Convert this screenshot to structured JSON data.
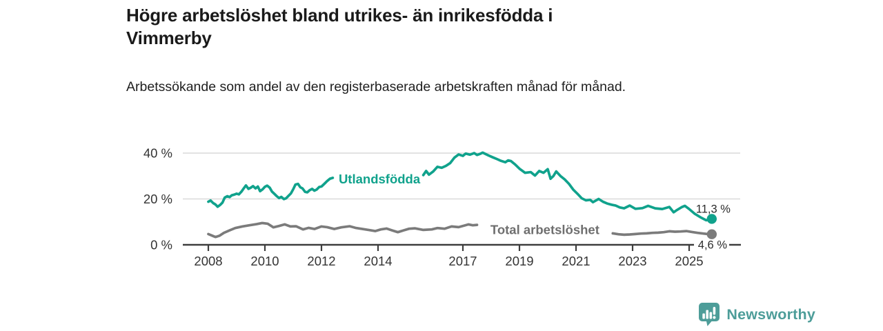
{
  "header": {
    "title": "Högre arbetslöshet bland utrikes- än inrikesfödda i Vimmerby",
    "subtitle": "Arbetssökande som andel av den registerbaserade arbetskraften månad för månad."
  },
  "footer": {
    "brand": "Newsworthy"
  },
  "colors": {
    "teal": "#10a28c",
    "gray_line": "#7b7b7b",
    "gray_label": "#6f6f6f",
    "grid": "#d9d9d9",
    "axis": "#3d3d3d",
    "logo_teal": "#4d9d99"
  },
  "chart_data": {
    "type": "line",
    "title": "Högre arbetslöshet bland utrikes- än inrikesfödda i Vimmerby",
    "subtitle": "Arbetssökande som andel av den registerbaserade arbetskraften månad för månad.",
    "unit": "%",
    "x_axis": {
      "range": [
        2007.1,
        2026.3
      ],
      "ticks": [
        {
          "year": 2008,
          "label": "2008"
        },
        {
          "year": 2010,
          "label": "2010"
        },
        {
          "year": 2012,
          "label": "2012"
        },
        {
          "year": 2014,
          "label": "2014"
        },
        {
          "year": 2017,
          "label": "2017"
        },
        {
          "year": 2019,
          "label": "2019"
        },
        {
          "year": 2021,
          "label": "2021"
        },
        {
          "year": 2023,
          "label": "2023"
        },
        {
          "year": 2025,
          "label": "2025"
        }
      ]
    },
    "y_axis": {
      "range": [
        0,
        43
      ],
      "grid": true,
      "ticks": [
        {
          "value": 0,
          "label": "0 %"
        },
        {
          "value": 20,
          "label": "20 %"
        },
        {
          "value": 40,
          "label": "40 %"
        }
      ]
    },
    "series": [
      {
        "name": "Utlandsfödda",
        "color": "#10a28c",
        "inline_label": {
          "text": "Utlandsfödda",
          "year": 2014.05,
          "pct": 26.8
        },
        "end_label": "11,3 %",
        "end_value": 11.3,
        "end_year": 2025.8,
        "segments": [
          [
            [
              2008.0,
              18.8
            ],
            [
              2008.08,
              19.3
            ],
            [
              2008.17,
              18.2
            ],
            [
              2008.25,
              17.6
            ],
            [
              2008.33,
              16.6
            ],
            [
              2008.42,
              17.4
            ],
            [
              2008.5,
              18.4
            ],
            [
              2008.58,
              20.6
            ],
            [
              2008.67,
              21.2
            ],
            [
              2008.75,
              20.8
            ],
            [
              2008.83,
              21.6
            ],
            [
              2008.92,
              21.9
            ],
            [
              2009.0,
              22.3
            ],
            [
              2009.08,
              22.0
            ],
            [
              2009.17,
              23.2
            ],
            [
              2009.25,
              24.6
            ],
            [
              2009.33,
              25.9
            ],
            [
              2009.42,
              24.4
            ],
            [
              2009.5,
              24.9
            ],
            [
              2009.58,
              25.6
            ],
            [
              2009.67,
              24.6
            ],
            [
              2009.75,
              25.4
            ],
            [
              2009.83,
              23.4
            ],
            [
              2009.92,
              24.2
            ],
            [
              2010.0,
              25.3
            ],
            [
              2010.08,
              25.8
            ],
            [
              2010.17,
              24.9
            ],
            [
              2010.25,
              23.2
            ],
            [
              2010.33,
              22.3
            ],
            [
              2010.42,
              21.2
            ],
            [
              2010.5,
              20.4
            ],
            [
              2010.58,
              20.9
            ],
            [
              2010.67,
              19.9
            ],
            [
              2010.75,
              20.3
            ],
            [
              2010.83,
              21.3
            ],
            [
              2010.92,
              22.4
            ],
            [
              2011.0,
              24.2
            ],
            [
              2011.08,
              26.3
            ],
            [
              2011.17,
              26.6
            ],
            [
              2011.25,
              25.1
            ],
            [
              2011.33,
              24.6
            ],
            [
              2011.42,
              23.1
            ],
            [
              2011.5,
              22.9
            ],
            [
              2011.58,
              23.8
            ],
            [
              2011.67,
              24.4
            ],
            [
              2011.75,
              23.6
            ],
            [
              2011.83,
              24.1
            ],
            [
              2011.92,
              25.2
            ],
            [
              2012.0,
              25.4
            ],
            [
              2012.1,
              26.6
            ],
            [
              2012.2,
              27.8
            ],
            [
              2012.3,
              28.8
            ],
            [
              2012.4,
              29.2
            ]
          ],
          [
            [
              2015.6,
              30.4
            ],
            [
              2015.7,
              32.2
            ],
            [
              2015.8,
              30.6
            ],
            [
              2015.95,
              32.0
            ],
            [
              2016.1,
              34.0
            ],
            [
              2016.25,
              33.6
            ],
            [
              2016.4,
              34.4
            ],
            [
              2016.55,
              35.6
            ],
            [
              2016.7,
              38.0
            ],
            [
              2016.85,
              39.4
            ],
            [
              2017.0,
              38.8
            ],
            [
              2017.1,
              39.8
            ],
            [
              2017.25,
              39.3
            ],
            [
              2017.4,
              40.0
            ],
            [
              2017.5,
              39.2
            ],
            [
              2017.6,
              39.6
            ],
            [
              2017.7,
              40.2
            ],
            [
              2017.8,
              39.6
            ],
            [
              2017.9,
              39.0
            ],
            [
              2018.05,
              38.2
            ],
            [
              2018.2,
              37.4
            ],
            [
              2018.35,
              36.6
            ],
            [
              2018.5,
              36.0
            ],
            [
              2018.6,
              36.8
            ],
            [
              2018.7,
              36.5
            ],
            [
              2018.85,
              35.0
            ],
            [
              2019.0,
              33.2
            ],
            [
              2019.2,
              31.4
            ],
            [
              2019.4,
              31.7
            ],
            [
              2019.55,
              30.2
            ],
            [
              2019.7,
              32.2
            ],
            [
              2019.85,
              31.4
            ],
            [
              2020.0,
              33.0
            ],
            [
              2020.1,
              28.8
            ],
            [
              2020.2,
              30.0
            ],
            [
              2020.3,
              32.0
            ],
            [
              2020.45,
              30.0
            ],
            [
              2020.6,
              28.5
            ],
            [
              2020.75,
              26.6
            ],
            [
              2020.9,
              24.1
            ],
            [
              2021.05,
              22.3
            ],
            [
              2021.2,
              20.3
            ],
            [
              2021.35,
              19.4
            ],
            [
              2021.5,
              19.6
            ],
            [
              2021.6,
              18.6
            ],
            [
              2021.8,
              20.0
            ],
            [
              2021.95,
              18.8
            ],
            [
              2022.1,
              18.0
            ],
            [
              2022.25,
              17.5
            ],
            [
              2022.4,
              17.1
            ],
            [
              2022.55,
              16.3
            ],
            [
              2022.7,
              15.9
            ],
            [
              2022.9,
              17.1
            ],
            [
              2023.1,
              15.7
            ],
            [
              2023.35,
              16.0
            ],
            [
              2023.55,
              17.0
            ],
            [
              2023.8,
              15.9
            ],
            [
              2024.05,
              15.6
            ],
            [
              2024.3,
              16.5
            ],
            [
              2024.45,
              14.2
            ],
            [
              2024.55,
              15.0
            ],
            [
              2024.75,
              16.5
            ],
            [
              2024.85,
              17.0
            ],
            [
              2025.0,
              15.6
            ],
            [
              2025.2,
              13.5
            ],
            [
              2025.4,
              12.0
            ],
            [
              2025.6,
              10.7
            ],
            [
              2025.7,
              11.0
            ],
            [
              2025.8,
              11.3
            ]
          ]
        ]
      },
      {
        "name": "Total arbetslöshet",
        "color": "#7b7b7b",
        "inline_label": {
          "text": "Total arbetslöshet",
          "year": 2019.9,
          "pct": 4.7
        },
        "end_label": "4,6 %",
        "end_value": 4.6,
        "end_year": 2025.8,
        "segments": [
          [
            [
              2008.0,
              4.7
            ],
            [
              2008.15,
              3.9
            ],
            [
              2008.25,
              3.4
            ],
            [
              2008.4,
              4.0
            ],
            [
              2008.55,
              5.2
            ],
            [
              2008.75,
              6.3
            ],
            [
              2008.95,
              7.3
            ],
            [
              2009.2,
              8.0
            ],
            [
              2009.45,
              8.5
            ],
            [
              2009.7,
              9.0
            ],
            [
              2009.9,
              9.5
            ],
            [
              2010.1,
              9.2
            ],
            [
              2010.3,
              7.6
            ],
            [
              2010.5,
              8.2
            ],
            [
              2010.7,
              8.9
            ],
            [
              2010.9,
              8.0
            ],
            [
              2011.1,
              8.1
            ],
            [
              2011.35,
              6.7
            ],
            [
              2011.55,
              7.4
            ],
            [
              2011.75,
              6.9
            ],
            [
              2012.0,
              8.0
            ],
            [
              2012.2,
              7.7
            ],
            [
              2012.45,
              6.9
            ],
            [
              2012.7,
              7.6
            ],
            [
              2013.0,
              8.1
            ],
            [
              2013.2,
              7.4
            ],
            [
              2013.45,
              6.9
            ],
            [
              2013.7,
              6.4
            ],
            [
              2013.9,
              6.0
            ],
            [
              2014.1,
              6.7
            ],
            [
              2014.3,
              7.1
            ],
            [
              2014.5,
              6.3
            ],
            [
              2014.7,
              5.5
            ],
            [
              2014.9,
              6.3
            ],
            [
              2015.1,
              7.0
            ],
            [
              2015.3,
              7.2
            ],
            [
              2015.6,
              6.5
            ],
            [
              2015.9,
              6.7
            ],
            [
              2016.1,
              7.3
            ],
            [
              2016.35,
              7.0
            ],
            [
              2016.6,
              8.0
            ],
            [
              2016.85,
              7.7
            ],
            [
              2017.05,
              8.4
            ],
            [
              2017.2,
              8.9
            ],
            [
              2017.35,
              8.5
            ],
            [
              2017.5,
              8.7
            ]
          ],
          [
            [
              2022.3,
              5.0
            ],
            [
              2022.5,
              4.6
            ],
            [
              2022.7,
              4.4
            ],
            [
              2022.9,
              4.5
            ],
            [
              2023.1,
              4.7
            ],
            [
              2023.3,
              4.9
            ],
            [
              2023.5,
              5.0
            ],
            [
              2023.7,
              5.2
            ],
            [
              2023.9,
              5.3
            ],
            [
              2024.1,
              5.5
            ],
            [
              2024.3,
              5.9
            ],
            [
              2024.5,
              5.7
            ],
            [
              2024.7,
              5.8
            ],
            [
              2024.9,
              6.0
            ],
            [
              2025.1,
              5.6
            ],
            [
              2025.3,
              5.2
            ],
            [
              2025.5,
              4.9
            ],
            [
              2025.65,
              4.7
            ],
            [
              2025.8,
              4.6
            ]
          ]
        ]
      }
    ]
  }
}
